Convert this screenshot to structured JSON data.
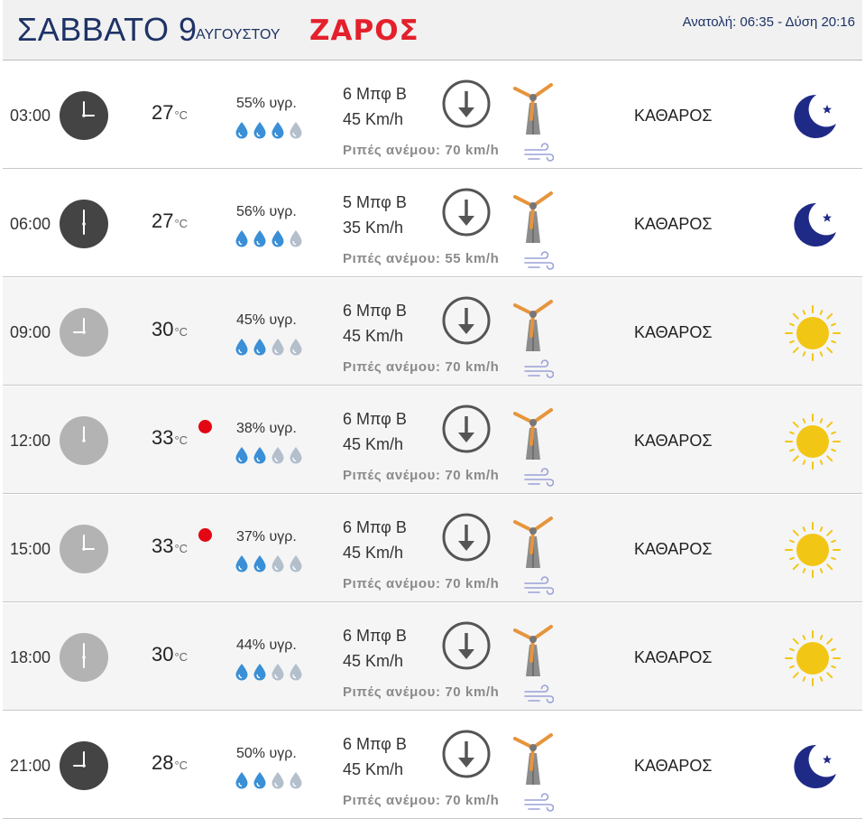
{
  "header": {
    "day": "ΣΑΒΒΑΤΟ 9",
    "month": "ΑΥΓΟΥΣΤΟΥ",
    "location": "ΖΑΡΟΣ",
    "sunrise_sunset": "Ανατολή: 06:35  - Δύση 20:16"
  },
  "colors": {
    "header_text": "#1e3366",
    "location": "#e3202b",
    "hot_dot": "#e30613",
    "drop_filled": "#3a8fd6",
    "drop_empty": "#b4bfcc",
    "moon": "#1f2a86",
    "sun": "#f2c614",
    "windmill_blade": "#e6953d"
  },
  "rows": [
    {
      "time": "03:00",
      "clock_icon": "clock-dark-icon",
      "temp": "27",
      "unit": "°C",
      "hot": false,
      "humidity": "55% υγρ.",
      "drops_filled": 3,
      "beaufort": "6 Μπφ Β",
      "speed": "45 Km/h",
      "gust": "Ριπές ανέμου: 70 km/h",
      "condition": "ΚΑΘΑΡΟΣ",
      "weather_icon": "moon-icon"
    },
    {
      "time": "06:00",
      "clock_icon": "clock-dark-icon",
      "temp": "27",
      "unit": "°C",
      "hot": false,
      "humidity": "56% υγρ.",
      "drops_filled": 3,
      "beaufort": "5 Μπφ Β",
      "speed": "35 Km/h",
      "gust": "Ριπές ανέμου: 55 km/h",
      "condition": "ΚΑΘΑΡΟΣ",
      "weather_icon": "moon-icon"
    },
    {
      "time": "09:00",
      "clock_icon": "clock-light-icon",
      "temp": "30",
      "unit": "°C",
      "hot": false,
      "humidity": "45% υγρ.",
      "drops_filled": 2,
      "beaufort": "6 Μπφ Β",
      "speed": "45 Km/h",
      "gust": "Ριπές ανέμου: 70 km/h",
      "condition": "ΚΑΘΑΡΟΣ",
      "weather_icon": "sun-icon"
    },
    {
      "time": "12:00",
      "clock_icon": "clock-light-icon",
      "temp": "33",
      "unit": "°C",
      "hot": true,
      "humidity": "38% υγρ.",
      "drops_filled": 2,
      "beaufort": "6 Μπφ Β",
      "speed": "45 Km/h",
      "gust": "Ριπές ανέμου: 70 km/h",
      "condition": "ΚΑΘΑΡΟΣ",
      "weather_icon": "sun-icon"
    },
    {
      "time": "15:00",
      "clock_icon": "clock-light-icon",
      "temp": "33",
      "unit": "°C",
      "hot": true,
      "humidity": "37% υγρ.",
      "drops_filled": 2,
      "beaufort": "6 Μπφ Β",
      "speed": "45 Km/h",
      "gust": "Ριπές ανέμου: 70 km/h",
      "condition": "ΚΑΘΑΡΟΣ",
      "weather_icon": "sun-icon"
    },
    {
      "time": "18:00",
      "clock_icon": "clock-light-icon",
      "temp": "30",
      "unit": "°C",
      "hot": false,
      "humidity": "44% υγρ.",
      "drops_filled": 2,
      "beaufort": "6 Μπφ Β",
      "speed": "45 Km/h",
      "gust": "Ριπές ανέμου: 70 km/h",
      "condition": "ΚΑΘΑΡΟΣ",
      "weather_icon": "sun-icon"
    },
    {
      "time": "21:00",
      "clock_icon": "clock-dark-icon",
      "temp": "28",
      "unit": "°C",
      "hot": false,
      "humidity": "50% υγρ.",
      "drops_filled": 2,
      "beaufort": "6 Μπφ Β",
      "speed": "45 Km/h",
      "gust": "Ριπές ανέμου: 70 km/h",
      "condition": "ΚΑΘΑΡΟΣ",
      "weather_icon": "moon-icon"
    }
  ]
}
